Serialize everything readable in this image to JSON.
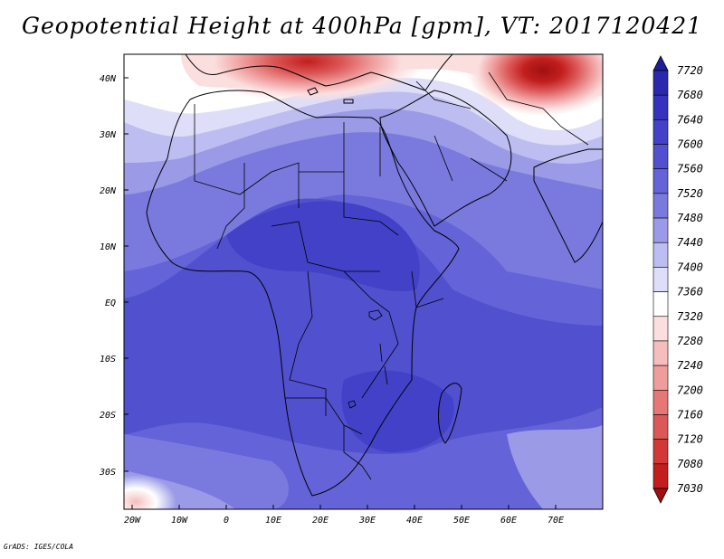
{
  "title": "Geopotential Height at 400hPa [gpm], VT: 2017120421",
  "credit": "GrADS: IGES/COLA",
  "map": {
    "variable": "Geopotential Height",
    "level": "400hPa",
    "units": "gpm",
    "valid_time": "2017120421",
    "lat_ticks": [
      "40N",
      "30N",
      "20N",
      "10N",
      "EQ",
      "10S",
      "20S",
      "30S"
    ],
    "lon_ticks": [
      "20W",
      "10W",
      "0",
      "10E",
      "20E",
      "30E",
      "40E",
      "50E",
      "60E",
      "70E"
    ]
  },
  "colorbar": {
    "levels": [
      "7720",
      "7680",
      "7640",
      "7600",
      "7560",
      "7520",
      "7480",
      "7440",
      "7400",
      "7360",
      "7320",
      "7280",
      "7240",
      "7200",
      "7160",
      "7120",
      "7080",
      "7030"
    ],
    "colors": [
      "#1f1e9a",
      "#2a29ad",
      "#3533bd",
      "#4241c8",
      "#5150cf",
      "#6463d7",
      "#7a7ade",
      "#9a9ae7",
      "#bdbdf1",
      "#dedef8",
      "#ffffff",
      "#fbdede",
      "#f6bdbd",
      "#ef9c9c",
      "#e57777",
      "#dc5757",
      "#d23838",
      "#c21e1e",
      "#a01010"
    ]
  }
}
